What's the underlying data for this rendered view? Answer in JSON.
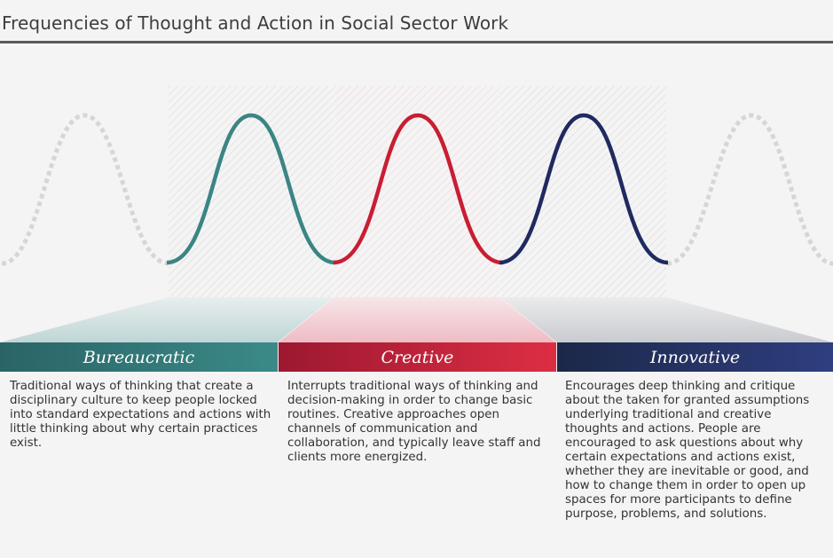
{
  "title": "Frequencies of Thought and Action in Social Sector Work",
  "colors": {
    "bureaucratic": "#3b8583",
    "creative": "#c81e33",
    "innovative": "#1f2a60",
    "ghost": "#d6d6d6"
  },
  "columns": [
    {
      "label": "Bureaucratic",
      "description": "Traditional ways of thinking that create a disciplinary culture to keep people locked into standard expectations and actions with little thinking about why certain practices exist."
    },
    {
      "label": "Creative",
      "description": "Interrupts traditional ways of thinking and decision-making in order to change basic routines. Creative approaches open channels of communication and collaboration, and typically leave staff and clients more energized."
    },
    {
      "label": "Innovative",
      "description": "Encourages deep thinking and critique about the taken for granted assumptions underlying traditional and creative thoughts and actions. People are encouraged to ask questions about why certain expectations and actions exist, whether they are inevitable or good, and how to change them in order to open up spaces for more participants to define purpose, problems, and solutions."
    }
  ]
}
